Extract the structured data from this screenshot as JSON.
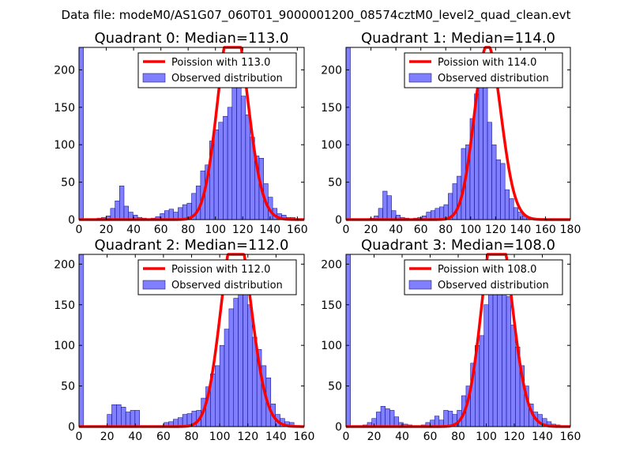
{
  "figure": {
    "suptitle": "Data file: modeM0/AS1G07_060T01_9000001200_08574cztM0_level2_quad_clean.evt"
  },
  "colors": {
    "bars": "#7f7fff",
    "bar_edge": "#000080",
    "fit": "#ff0000"
  },
  "chart_data": [
    {
      "type": "bar",
      "title": "Quadrant 0: Median=113.0",
      "legend": [
        "Poission with 113.0",
        "Observed distribution"
      ],
      "legend_position": "top-right",
      "mean": 113.0,
      "bin_width": 3.3,
      "x_range": [
        0,
        165
      ],
      "ylim": [
        0,
        230
      ],
      "xticks": [
        0,
        20,
        40,
        60,
        80,
        100,
        120,
        140,
        160
      ],
      "yticks": [
        0,
        50,
        100,
        150,
        200
      ],
      "bins": [
        0,
        10,
        13.2,
        16.5,
        19.8,
        23.1,
        26.4,
        29.7,
        33,
        36.3,
        39.6,
        42.9,
        46.2,
        49.5,
        52.8,
        56.1,
        59.4,
        62.7,
        66,
        69.3,
        72.6,
        75.9,
        79.2,
        82.5,
        85.8,
        89.1,
        92.4,
        95.7,
        99,
        102.3,
        105.6,
        108.9,
        112.2,
        115.5,
        118.8,
        122.1,
        125.4,
        128.7,
        132,
        135.3,
        138.6,
        141.9,
        145.2,
        148.5,
        151.8,
        155.1
      ],
      "values": [
        230,
        1,
        2,
        3,
        5,
        15,
        25,
        45,
        18,
        10,
        6,
        3,
        2,
        1,
        2,
        4,
        8,
        12,
        14,
        10,
        16,
        20,
        22,
        35,
        45,
        65,
        73,
        105,
        120,
        130,
        138,
        150,
        190,
        183,
        165,
        140,
        110,
        85,
        82,
        48,
        30,
        15,
        8,
        6,
        3,
        3
      ]
    },
    {
      "type": "bar",
      "title": "Quadrant 1: Median=114.0",
      "legend": [
        "Poission with 114.0",
        "Observed distribution"
      ],
      "legend_position": "top-right",
      "mean": 114.0,
      "bin_width": 3.5,
      "x_range": [
        0,
        180
      ],
      "ylim": [
        0,
        230
      ],
      "xticks": [
        0,
        20,
        40,
        60,
        80,
        100,
        120,
        140,
        160,
        180
      ],
      "yticks": [
        0,
        50,
        100,
        150,
        200
      ],
      "bins": [
        0,
        15.5,
        19,
        22.5,
        26,
        29.5,
        33,
        36.5,
        40,
        43.5,
        47,
        50.5,
        54,
        57.5,
        61,
        64.5,
        68,
        71.5,
        75,
        78.5,
        82,
        85.5,
        89,
        92.5,
        96,
        99.5,
        103,
        106.5,
        110,
        113.5,
        117,
        120.5,
        124,
        127.5,
        131,
        134.5,
        138,
        141.5,
        145,
        148.5,
        152,
        155.5,
        159
      ],
      "values": [
        230,
        1,
        2,
        5,
        15,
        38,
        32,
        12,
        6,
        3,
        2,
        1,
        2,
        3,
        5,
        10,
        12,
        15,
        17,
        20,
        35,
        48,
        58,
        95,
        100,
        135,
        168,
        192,
        185,
        130,
        100,
        80,
        75,
        40,
        28,
        16,
        10,
        5,
        3,
        2,
        1,
        1,
        1
      ]
    },
    {
      "type": "bar",
      "title": "Quadrant 2: Median=112.0",
      "legend": [
        "Poission with 112.0",
        "Observed distribution"
      ],
      "legend_position": "top-right",
      "mean": 112.0,
      "bin_width": 3.3,
      "x_range": [
        0,
        160
      ],
      "ylim": [
        0,
        212
      ],
      "xticks": [
        0,
        20,
        40,
        60,
        80,
        100,
        120,
        140,
        160
      ],
      "yticks": [
        0,
        50,
        100,
        150,
        200
      ],
      "bins": [
        0,
        20,
        23.3,
        26.6,
        29.9,
        33.2,
        36.5,
        39.8,
        60.4,
        63.7,
        67,
        70.3,
        73.6,
        76.9,
        80.2,
        83.5,
        86.8,
        90.1,
        93.4,
        96.7,
        100,
        103.3,
        106.6,
        109.9,
        113.2,
        116.5,
        119.8,
        123.1,
        126.4,
        129.7,
        133,
        136.3,
        139.6,
        142.9,
        146.2,
        149.5
      ],
      "values": [
        212,
        15,
        27,
        27,
        24,
        18,
        20,
        20,
        5,
        6,
        9,
        11,
        15,
        16,
        19,
        20,
        35,
        49,
        65,
        75,
        100,
        120,
        145,
        158,
        190,
        200,
        150,
        110,
        95,
        75,
        60,
        28,
        15,
        10,
        6,
        5
      ]
    },
    {
      "type": "bar",
      "title": "Quadrant 3: Median=108.0",
      "legend": [
        "Poission with 108.0",
        "Observed distribution"
      ],
      "legend_position": "top-right",
      "mean": 108.0,
      "bin_width": 3.2,
      "x_range": [
        0,
        160
      ],
      "ylim": [
        0,
        212
      ],
      "xticks": [
        0,
        20,
        40,
        60,
        80,
        100,
        120,
        140,
        160
      ],
      "yticks": [
        0,
        50,
        100,
        150,
        200
      ],
      "bins": [
        0,
        12,
        15.2,
        18.4,
        21.6,
        24.8,
        28,
        31.2,
        34.4,
        37.6,
        40.8,
        44,
        47.2,
        50.4,
        53.6,
        56.8,
        60,
        63.2,
        66.4,
        69.6,
        72.8,
        76,
        79.2,
        82.4,
        85.6,
        88.8,
        92,
        95.2,
        98.4,
        101.6,
        104.8,
        108,
        111.2,
        114.4,
        117.6,
        120.8,
        124,
        127.2,
        130.4,
        133.6,
        136.8,
        140,
        143.2,
        146.4,
        149.6
      ],
      "values": [
        212,
        2,
        5,
        10,
        18,
        25,
        22,
        20,
        12,
        5,
        3,
        2,
        1,
        1,
        2,
        5,
        8,
        13,
        8,
        20,
        19,
        15,
        20,
        38,
        50,
        78,
        100,
        112,
        150,
        170,
        180,
        195,
        185,
        160,
        125,
        98,
        75,
        50,
        28,
        18,
        15,
        10,
        6,
        3,
        2
      ]
    }
  ]
}
